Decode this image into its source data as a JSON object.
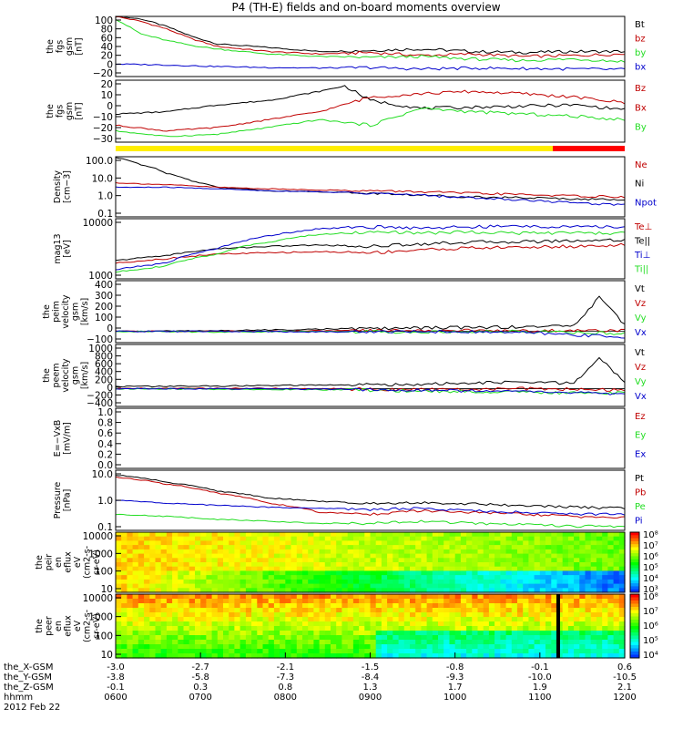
{
  "title": "P4 (TH-E) fields and on-board moments overview",
  "colors": {
    "black": "#000000",
    "red": "#c00000",
    "green": "#22dd22",
    "blue": "#0000cc",
    "yellow": "#ffee00",
    "barred": "#ff0000"
  },
  "chart_data": [
    {
      "id": "fgs1",
      "type": "line",
      "ylabel": [
        "the",
        "fgs",
        "gsm",
        "[nT]"
      ],
      "yticks": [
        "100",
        "80",
        "60",
        "40",
        "20",
        "0",
        "−20"
      ],
      "ylim": [
        -20,
        100
      ],
      "legend": [
        {
          "text": "Bt",
          "color": "black"
        },
        {
          "text": "bz",
          "color": "red"
        },
        {
          "text": "by",
          "color": "green"
        },
        {
          "text": "bx",
          "color": "blue"
        }
      ],
      "series": [
        {
          "color": "black",
          "x": [
            0,
            0.05,
            0.1,
            0.15,
            0.2,
            0.3,
            0.4,
            0.5,
            0.6,
            0.7,
            0.8,
            0.9,
            1
          ],
          "y": [
            100,
            95,
            80,
            60,
            45,
            38,
            30,
            32,
            35,
            30,
            28,
            30,
            30
          ]
        },
        {
          "color": "red",
          "x": [
            0,
            0.05,
            0.1,
            0.15,
            0.2,
            0.3,
            0.4,
            0.5,
            0.6,
            0.7,
            0.8,
            0.9,
            1
          ],
          "y": [
            100,
            90,
            75,
            55,
            40,
            30,
            25,
            28,
            22,
            25,
            20,
            22,
            25
          ]
        },
        {
          "color": "green",
          "x": [
            0,
            0.05,
            0.1,
            0.15,
            0.2,
            0.3,
            0.4,
            0.5,
            0.6,
            0.7,
            0.8,
            0.9,
            1
          ],
          "y": [
            95,
            65,
            52,
            42,
            35,
            25,
            20,
            18,
            20,
            15,
            12,
            15,
            10
          ]
        },
        {
          "color": "blue",
          "x": [
            0,
            0.1,
            0.2,
            0.3,
            0.4,
            0.5,
            0.6,
            0.7,
            0.8,
            0.9,
            1
          ],
          "y": [
            5,
            3,
            0,
            -2,
            -3,
            -2,
            -5,
            -3,
            -4,
            -5,
            -6
          ]
        }
      ]
    },
    {
      "id": "fgs2",
      "type": "line",
      "ylabel": [
        "the",
        "fgs",
        "gsm",
        "[nT]"
      ],
      "yticks": [
        "20",
        "10",
        "0",
        "−10",
        "−20",
        "−30"
      ],
      "ylim": [
        -35,
        20
      ],
      "legend": [
        {
          "text": "Bz",
          "color": "red"
        },
        {
          "text": "Bx",
          "color": "red"
        },
        {
          "text": "By",
          "color": "green"
        }
      ],
      "series": [
        {
          "color": "black",
          "x": [
            0,
            0.1,
            0.2,
            0.3,
            0.4,
            0.45,
            0.5,
            0.6,
            0.7,
            0.8,
            0.9,
            1
          ],
          "y": [
            -10,
            -8,
            -2,
            2,
            10,
            15,
            2,
            -5,
            -4,
            -3,
            -2,
            -6
          ]
        },
        {
          "color": "red",
          "x": [
            0,
            0.1,
            0.2,
            0.3,
            0.4,
            0.5,
            0.6,
            0.7,
            0.8,
            0.9,
            1
          ],
          "y": [
            -20,
            -25,
            -22,
            -15,
            -8,
            5,
            8,
            10,
            8,
            5,
            0
          ]
        },
        {
          "color": "green",
          "x": [
            0,
            0.1,
            0.2,
            0.3,
            0.4,
            0.5,
            0.6,
            0.7,
            0.8,
            0.9,
            1
          ],
          "y": [
            -25,
            -30,
            -28,
            -22,
            -15,
            -20,
            -5,
            -8,
            -10,
            -12,
            -15
          ]
        }
      ]
    },
    {
      "id": "density",
      "type": "line",
      "scale": "log",
      "ylabel": [
        "Density",
        "[cm−3]"
      ],
      "yticks": [
        "100.0",
        "10.0",
        "1.0",
        "0.1"
      ],
      "ylim": [
        0.1,
        100
      ],
      "legend": [
        {
          "text": "Ne",
          "color": "red"
        },
        {
          "text": "Ni",
          "color": "black"
        },
        {
          "text": "Npot",
          "color": "blue"
        }
      ],
      "series": [
        {
          "color": "black",
          "x": [
            0,
            0.05,
            0.1,
            0.15,
            0.2,
            0.3,
            0.4,
            0.5,
            0.6,
            0.7,
            0.8,
            0.9,
            1
          ],
          "y": [
            90,
            40,
            15,
            6,
            3,
            2,
            1.8,
            1.5,
            1.2,
            1,
            0.9,
            0.8,
            0.7
          ]
        },
        {
          "color": "red",
          "x": [
            0,
            0.1,
            0.2,
            0.3,
            0.4,
            0.5,
            0.6,
            0.7,
            0.8,
            0.9,
            1
          ],
          "y": [
            5,
            4,
            3,
            2.5,
            2.2,
            2,
            1.8,
            1.5,
            1.3,
            1.1,
            1
          ]
        },
        {
          "color": "blue",
          "x": [
            0,
            0.1,
            0.2,
            0.3,
            0.4,
            0.5,
            0.6,
            0.7,
            0.8,
            0.9,
            1
          ],
          "y": [
            3,
            3,
            2.5,
            2,
            1.8,
            1.5,
            1.2,
            0.9,
            0.7,
            0.5,
            0.4
          ]
        }
      ]
    },
    {
      "id": "temp",
      "type": "line",
      "scale": "log",
      "ylabel": [
        "mag13",
        "[eV]"
      ],
      "yticks": [
        "10000",
        "1000"
      ],
      "ylim": [
        150,
        15000
      ],
      "legend": [
        {
          "text": "Te⊥",
          "color": "red"
        },
        {
          "text": "Te||",
          "color": "black"
        },
        {
          "text": "Ti⊥",
          "color": "blue"
        },
        {
          "text": "Ti||",
          "color": "green"
        }
      ],
      "series": [
        {
          "color": "black",
          "x": [
            0,
            0.1,
            0.2,
            0.3,
            0.4,
            0.5,
            0.6,
            0.7,
            0.8,
            0.9,
            1
          ],
          "y": [
            600,
            900,
            1500,
            1800,
            2000,
            1800,
            2200,
            2500,
            2600,
            2800,
            3000
          ]
        },
        {
          "color": "red",
          "x": [
            0,
            0.1,
            0.2,
            0.3,
            0.4,
            0.5,
            0.6,
            0.7,
            0.8,
            0.9,
            1
          ],
          "y": [
            500,
            700,
            1000,
            1100,
            1200,
            1100,
            1400,
            1600,
            1700,
            1800,
            2000
          ]
        },
        {
          "color": "blue",
          "x": [
            0,
            0.1,
            0.2,
            0.3,
            0.4,
            0.5,
            0.6,
            0.7,
            0.8,
            0.9,
            1
          ],
          "y": [
            300,
            500,
            1500,
            4000,
            7000,
            8000,
            7500,
            8000,
            8500,
            8000,
            8000
          ]
        },
        {
          "color": "green",
          "x": [
            0,
            0.1,
            0.2,
            0.3,
            0.4,
            0.5,
            0.6,
            0.7,
            0.8,
            0.9,
            1
          ],
          "y": [
            250,
            400,
            1000,
            2500,
            4500,
            5500,
            5000,
            5500,
            5000,
            5000,
            5000
          ]
        }
      ]
    },
    {
      "id": "vperp",
      "type": "line",
      "ylabel": [
        "the",
        "peim",
        "velocity",
        "gsm",
        "[km/s]"
      ],
      "yticks": [
        "400",
        "300",
        "200",
        "100",
        "0",
        "−100"
      ],
      "ylim": [
        -100,
        450
      ],
      "legend": [
        {
          "text": "Vt",
          "color": "black"
        },
        {
          "text": "Vz",
          "color": "red"
        },
        {
          "text": "Vy",
          "color": "green"
        },
        {
          "text": "Vx",
          "color": "blue"
        }
      ],
      "series": [
        {
          "color": "black",
          "x": [
            0,
            0.2,
            0.4,
            0.6,
            0.8,
            0.9,
            0.95,
            1
          ],
          "y": [
            0,
            5,
            20,
            30,
            40,
            50,
            300,
            60
          ]
        },
        {
          "color": "red",
          "x": [
            0,
            0.2,
            0.4,
            0.6,
            0.8,
            1
          ],
          "y": [
            0,
            0,
            5,
            10,
            5,
            10
          ]
        },
        {
          "color": "green",
          "x": [
            0,
            0.2,
            0.4,
            0.6,
            0.8,
            1
          ],
          "y": [
            0,
            -5,
            0,
            -5,
            0,
            -20
          ]
        },
        {
          "color": "blue",
          "x": [
            0,
            0.2,
            0.4,
            0.6,
            0.8,
            1
          ],
          "y": [
            0,
            0,
            -5,
            0,
            -10,
            -50
          ]
        }
      ]
    },
    {
      "id": "veem",
      "type": "line",
      "ylabel": [
        "the",
        "peem",
        "velocity",
        "gsm",
        "[km/s]"
      ],
      "yticks": [
        "1000",
        "800",
        "600",
        "400",
        "200",
        "0",
        "−200",
        "−400"
      ],
      "ylim": [
        -400,
        1000
      ],
      "legend": [
        {
          "text": "Vt",
          "color": "black"
        },
        {
          "text": "Vz",
          "color": "red"
        },
        {
          "text": "Vy",
          "color": "green"
        },
        {
          "text": "Vx",
          "color": "blue"
        }
      ],
      "series": [
        {
          "color": "black",
          "x": [
            0,
            0.2,
            0.4,
            0.6,
            0.8,
            0.9,
            0.95,
            1
          ],
          "y": [
            50,
            60,
            80,
            100,
            150,
            120,
            700,
            150
          ]
        },
        {
          "color": "red",
          "x": [
            0,
            0.2,
            0.4,
            0.6,
            0.8,
            1
          ],
          "y": [
            0,
            10,
            0,
            -20,
            0,
            -30
          ]
        },
        {
          "color": "green",
          "x": [
            0,
            0.2,
            0.4,
            0.6,
            0.8,
            1
          ],
          "y": [
            0,
            -10,
            -20,
            -50,
            -80,
            -100
          ]
        },
        {
          "color": "blue",
          "x": [
            0,
            0.2,
            0.4,
            0.6,
            0.8,
            1
          ],
          "y": [
            0,
            0,
            -10,
            -30,
            -60,
            -120
          ]
        }
      ]
    },
    {
      "id": "efield",
      "type": "line",
      "ylabel": [
        "E=−VxB",
        "[mV/m]"
      ],
      "yticks": [
        "1.0",
        "0.8",
        "0.6",
        "0.4",
        "0.2",
        "0.0"
      ],
      "ylim": [
        0,
        1
      ],
      "legend": [
        {
          "text": "Ez",
          "color": "red"
        },
        {
          "text": "Ey",
          "color": "green"
        },
        {
          "text": "Ex",
          "color": "blue"
        }
      ],
      "series": []
    },
    {
      "id": "pressure",
      "type": "line",
      "scale": "log",
      "ylabel": [
        "Pressure",
        "[nPa]"
      ],
      "yticks": [
        "10.0",
        "1.0",
        "0.1"
      ],
      "ylim": [
        0.1,
        40
      ],
      "legend": [
        {
          "text": "Pt",
          "color": "black"
        },
        {
          "text": "Pb",
          "color": "red"
        },
        {
          "text": "Pe",
          "color": "green"
        },
        {
          "text": "Pi",
          "color": "blue"
        }
      ],
      "series": [
        {
          "color": "black",
          "x": [
            0,
            0.1,
            0.2,
            0.3,
            0.4,
            0.5,
            0.6,
            0.7,
            0.8,
            0.9,
            1
          ],
          "y": [
            25,
            12,
            5,
            2.5,
            1.8,
            1.5,
            1.6,
            1.4,
            1.2,
            1,
            0.9
          ]
        },
        {
          "color": "red",
          "x": [
            0,
            0.1,
            0.2,
            0.3,
            0.4,
            0.5,
            0.6,
            0.7,
            0.8,
            0.9,
            1
          ],
          "y": [
            20,
            10,
            4,
            1.5,
            0.6,
            0.5,
            0.7,
            0.6,
            0.5,
            0.4,
            0.35
          ]
        },
        {
          "color": "blue",
          "x": [
            0,
            0.1,
            0.2,
            0.3,
            0.4,
            0.5,
            0.6,
            0.7,
            0.8,
            0.9,
            1
          ],
          "y": [
            2,
            1.5,
            1.2,
            1,
            0.9,
            0.8,
            0.9,
            0.7,
            0.6,
            0.5,
            0.5
          ]
        },
        {
          "color": "green",
          "x": [
            0,
            0.1,
            0.2,
            0.3,
            0.4,
            0.5,
            0.6,
            0.7,
            0.8,
            0.9,
            1
          ],
          "y": [
            0.5,
            0.4,
            0.3,
            0.25,
            0.2,
            0.2,
            0.25,
            0.2,
            0.18,
            0.15,
            0.15
          ]
        }
      ]
    },
    {
      "id": "peir",
      "type": "heatmap",
      "ylabel": [
        "the",
        "peir",
        "en",
        "eflux",
        "eV",
        "(cm2-s-",
        "sr-eV)"
      ],
      "yticks": [
        "10000",
        "1000",
        "100",
        "10"
      ],
      "colorbar": [
        "10⁸",
        "10⁷",
        "10⁶",
        "10⁵",
        "10⁴",
        "10³"
      ]
    },
    {
      "id": "peer",
      "type": "heatmap",
      "ylabel": [
        "the",
        "peer",
        "en",
        "eflux",
        "eV",
        "(cm2-s-",
        "sr-eV)"
      ],
      "yticks": [
        "10000",
        "1000",
        "100",
        "10"
      ],
      "colorbar": [
        "10⁸",
        "10⁷",
        "10⁶",
        "10⁵",
        "10⁴"
      ]
    }
  ],
  "xaxis": {
    "rows": [
      {
        "label": "the_X-GSM",
        "values": [
          "-3.0",
          "-2.7",
          "-2.1",
          "-1.5",
          "-0.8",
          "-0.1",
          "0.6"
        ]
      },
      {
        "label": "the_Y-GSM",
        "values": [
          "-3.8",
          "-5.8",
          "-7.3",
          "-8.4",
          "-9.3",
          "-10.0",
          "-10.5"
        ]
      },
      {
        "label": "the_Z-GSM",
        "values": [
          "-0.1",
          "0.3",
          "0.8",
          "1.3",
          "1.7",
          "1.9",
          "2.1"
        ]
      },
      {
        "label": "hhmm",
        "values": [
          "0600",
          "0700",
          "0800",
          "0900",
          "1000",
          "1100",
          "1200"
        ]
      }
    ],
    "date": "2012 Feb 22"
  }
}
